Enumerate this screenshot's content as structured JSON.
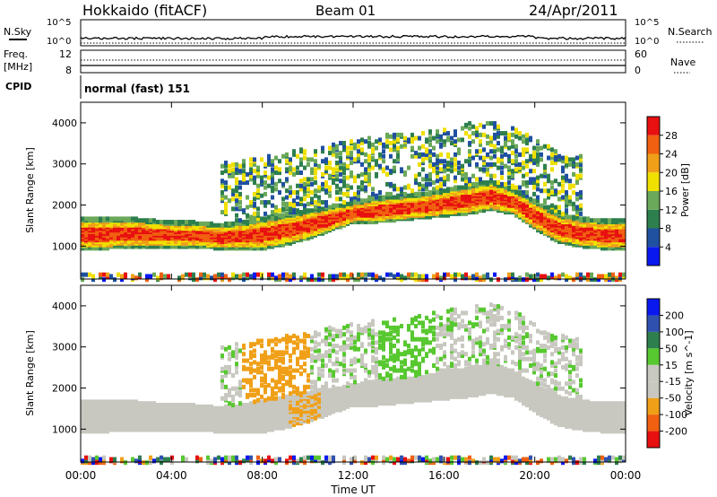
{
  "header": {
    "station": "Hokkaido (fitACF)",
    "beam": "Beam 01",
    "date": "24/Apr/2011"
  },
  "strip_nsky": {
    "label": "N.Sky",
    "left_ticks": [
      "10^5",
      "10^0"
    ],
    "right_ticks": [
      "10^5",
      "10^0"
    ],
    "right_label": "N.Search"
  },
  "strip_freq": {
    "label": "Freq.",
    "unit": "[MHz]",
    "left_ticks": [
      "12",
      "8"
    ],
    "right_ticks": [
      "60",
      "0"
    ],
    "right_label": "Nave"
  },
  "cpid": {
    "label": "CPID",
    "text": "normal (fast) 151"
  },
  "colors": {
    "power": [
      "#0a18f0",
      "#2050a0",
      "#2e7f4e",
      "#6aa85a",
      "#f0e000",
      "#f0a018",
      "#f06010",
      "#e81010"
    ],
    "velocity": [
      "#e81010",
      "#f06010",
      "#f0a018",
      "#c8c8c0",
      "#c8c8c0",
      "#58c830",
      "#2e7f4e",
      "#3050b0",
      "#0a18f0"
    ],
    "ground_scatter": "#a0a0a0"
  },
  "chart_data": [
    {
      "type": "heatmap",
      "name": "power-panel",
      "ylabel": "Slant Range [km]",
      "yticks": [
        "1000",
        "2000",
        "3000",
        "4000"
      ],
      "ylim": [
        200,
        4500
      ],
      "x": [
        "00:00",
        "01:00",
        "02:00",
        "03:00",
        "04:00",
        "05:00",
        "06:00",
        "07:00",
        "08:00",
        "09:00",
        "10:00",
        "11:00",
        "12:00",
        "13:00",
        "14:00",
        "15:00",
        "16:00",
        "17:00",
        "18:00",
        "19:00",
        "20:00",
        "21:00",
        "22:00",
        "23:00",
        "24:00"
      ],
      "band_low_km": [
        950,
        950,
        1000,
        1000,
        1000,
        1000,
        950,
        950,
        950,
        1050,
        1200,
        1400,
        1600,
        1600,
        1650,
        1700,
        1750,
        1800,
        1900,
        1800,
        1400,
        1100,
        1000,
        950,
        950
      ],
      "band_high_km": [
        1700,
        1700,
        1700,
        1650,
        1600,
        1600,
        1550,
        1600,
        1700,
        1800,
        1900,
        2000,
        2100,
        2200,
        2250,
        2300,
        2400,
        2500,
        2600,
        2400,
        2100,
        1800,
        1700,
        1650,
        1650
      ],
      "colorbar": {
        "label": "Power [dB]",
        "ticks": [
          "4",
          "8",
          "12",
          "16",
          "20",
          "24",
          "28"
        ],
        "range": [
          0,
          32
        ]
      }
    },
    {
      "type": "heatmap",
      "name": "velocity-panel",
      "ylabel": "Slant Range [km]",
      "yticks": [
        "1000",
        "2000",
        "3000",
        "4000"
      ],
      "ylim": [
        200,
        4500
      ],
      "x": [
        "00:00",
        "01:00",
        "02:00",
        "03:00",
        "04:00",
        "05:00",
        "06:00",
        "07:00",
        "08:00",
        "09:00",
        "10:00",
        "11:00",
        "12:00",
        "13:00",
        "14:00",
        "15:00",
        "16:00",
        "17:00",
        "18:00",
        "19:00",
        "20:00",
        "21:00",
        "22:00",
        "23:00",
        "24:00"
      ],
      "band_low_km": [
        950,
        950,
        1000,
        1000,
        1000,
        1000,
        950,
        950,
        950,
        1050,
        1200,
        1400,
        1600,
        1600,
        1650,
        1700,
        1750,
        1800,
        1900,
        1800,
        1400,
        1100,
        1000,
        950,
        950
      ],
      "band_high_km": [
        1700,
        1700,
        1700,
        1650,
        1600,
        1600,
        1550,
        1600,
        1700,
        1800,
        1900,
        2000,
        2100,
        2200,
        2250,
        2300,
        2400,
        2500,
        2600,
        2400,
        2100,
        1800,
        1700,
        1650,
        1650
      ],
      "colorbar": {
        "label": "Velocity [m s^-1]",
        "ticks": [
          "200",
          "100",
          "50",
          "15",
          "-15",
          "-50",
          "-100",
          "-200"
        ]
      }
    }
  ],
  "xaxis": {
    "ticks": [
      "00:00",
      "04:00",
      "08:00",
      "12:00",
      "16:00",
      "20:00",
      "00:00"
    ],
    "label": "Time UT"
  }
}
